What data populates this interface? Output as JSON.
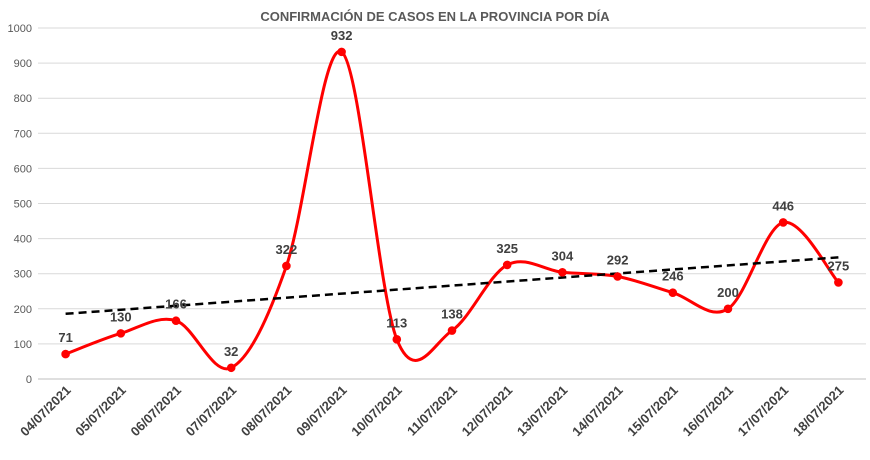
{
  "chart_data": {
    "type": "line",
    "title": "CONFIRMACIÓN  DE CASOS EN LA PROVINCIA  POR DÍA",
    "xlabel": "",
    "ylabel": "",
    "categories": [
      "04/07/2021",
      "05/07/2021",
      "06/07/2021",
      "07/07/2021",
      "08/07/2021",
      "09/07/2021",
      "10/07/2021",
      "11/07/2021",
      "12/07/2021",
      "13/07/2021",
      "14/07/2021",
      "15/07/2021",
      "16/07/2021",
      "17/07/2021",
      "18/07/2021"
    ],
    "series": [
      {
        "values": [
          71,
          130,
          166,
          32,
          322,
          932,
          113,
          138,
          325,
          304,
          292,
          246,
          200,
          446,
          275
        ],
        "color": "#ff0000",
        "smooth": true
      }
    ],
    "trendline": {
      "type": "linear",
      "style": "dashed",
      "color": "#000000"
    },
    "data_labels": true,
    "ylim": [
      0,
      1000
    ],
    "yticks": [
      0,
      100,
      200,
      300,
      400,
      500,
      600,
      700,
      800,
      900,
      1000
    ],
    "grid": true,
    "legend": "none"
  }
}
